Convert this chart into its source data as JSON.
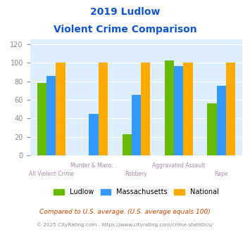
{
  "title_line1": "2019 Ludlow",
  "title_line2": "Violent Crime Comparison",
  "top_labels": [
    "",
    "Murder & Mans...",
    "",
    "Aggravated Assault",
    ""
  ],
  "bottom_labels": [
    "All Violent Crime",
    "",
    "Robbery",
    "",
    "Rape"
  ],
  "ludlow": [
    78,
    0,
    23,
    102,
    56
  ],
  "massachusetts": [
    86,
    45,
    65,
    96,
    75
  ],
  "national": [
    100,
    100,
    100,
    100,
    100
  ],
  "bar_colors": {
    "ludlow": "#66bb00",
    "massachusetts": "#3399ff",
    "national": "#ffaa00"
  },
  "ylim": [
    0,
    125
  ],
  "yticks": [
    0,
    20,
    40,
    60,
    80,
    100,
    120
  ],
  "legend_labels": [
    "Ludlow",
    "Massachusetts",
    "National"
  ],
  "footnote1": "Compared to U.S. average. (U.S. average equals 100)",
  "footnote2": "© 2025 CityRating.com - https://www.cityrating.com/crime-statistics/",
  "bg_color": "#ddeeff",
  "title_color": "#1155cc",
  "cat_label_color": "#aa88aa",
  "footnote1_color": "#cc4400",
  "footnote2_color": "#888888"
}
